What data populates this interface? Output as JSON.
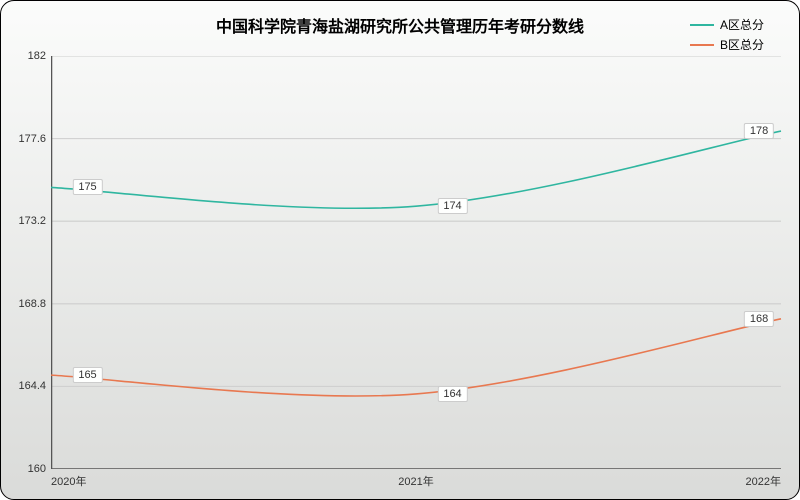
{
  "chart": {
    "type": "line",
    "title": "中国科学院青海盐湖研究所公共管理历年考研分数线",
    "title_fontsize": 16,
    "background_gradient_start": "#fbfcfb",
    "background_gradient_end": "#dadbd9",
    "border_color": "#000000",
    "border_radius": 14,
    "categories": [
      "2020年",
      "2021年",
      "2022年"
    ],
    "ylim": [
      160,
      182
    ],
    "yticks": [
      160,
      164.4,
      168.8,
      173.2,
      177.6,
      182
    ],
    "grid_color": "#cdcecd",
    "axis_color": "#555555",
    "label_fontsize": 11,
    "series": [
      {
        "name": "A区总分",
        "color": "#2fb6a0",
        "line_width": 1.6,
        "values": [
          175,
          174,
          178
        ],
        "smooth": true
      },
      {
        "name": "B区总分",
        "color": "#e87850",
        "line_width": 1.6,
        "values": [
          165,
          164,
          168
        ],
        "smooth": true
      }
    ],
    "legend_position": "top-right",
    "data_label_bg": "#fefffe",
    "data_label_border": "#cccccc"
  }
}
